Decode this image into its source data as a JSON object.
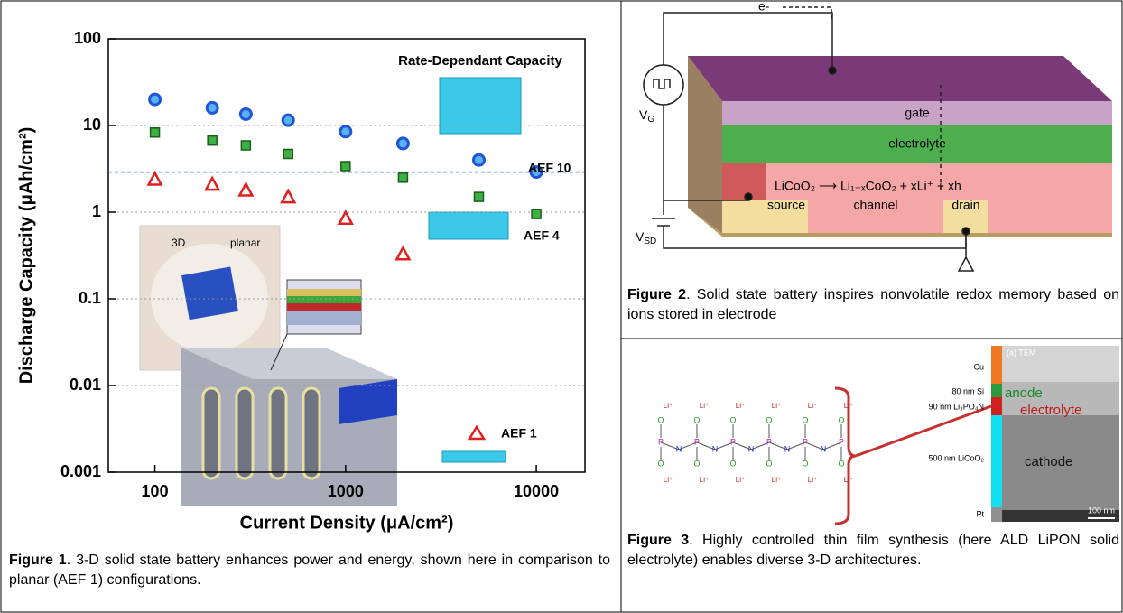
{
  "chart_data": {
    "type": "scatter",
    "title": "Rate-Dependant Capacity",
    "xlabel": "Current Density (μA/cm²)",
    "ylabel": "Discharge Capacity (μAh/cm²)",
    "log_x": true,
    "log_y": true,
    "grid": true,
    "xlim": [
      57,
      18000
    ],
    "xticks": [
      100,
      1000,
      10000
    ],
    "ylim": [
      0.001,
      100
    ],
    "yticks": [
      0.001,
      0.01,
      0.1,
      1,
      10,
      100
    ],
    "reference_line": 2.9,
    "reference_color": "#3a6fd8",
    "series": [
      {
        "name": "AEF 10",
        "marker": "circle",
        "color": "#1f55d6",
        "x": [
          100,
          200,
          300,
          500,
          1000,
          2000,
          5000,
          10000
        ],
        "values": [
          20,
          16,
          13.5,
          11.5,
          8.5,
          6.2,
          4,
          2.9
        ]
      },
      {
        "name": "AEF 4",
        "marker": "square",
        "color": "#2e9a2e",
        "x": [
          100,
          200,
          300,
          500,
          1000,
          2000,
          5000,
          10000
        ],
        "values": [
          8.3,
          6.7,
          5.9,
          4.7,
          3.4,
          2.5,
          1.5,
          0.95
        ]
      },
      {
        "name": "AEF 1",
        "marker": "triangle",
        "color": "#e02020",
        "x": [
          100,
          200,
          300,
          500,
          1000,
          2000
        ],
        "values": [
          2.4,
          2.1,
          1.8,
          1.5,
          0.85,
          0.33
        ]
      }
    ],
    "inset_labels": [
      "3D",
      "planar"
    ]
  },
  "figure1": {
    "label": "Figure 1",
    "caption": ". 3-D solid state battery enhances power and energy, shown here in comparison to planar (AEF 1) configurations."
  },
  "figure2": {
    "label": "Figure 2",
    "caption": ". Solid state battery inspires nonvolatile redox memory based on ions stored in electrode",
    "diagram": {
      "electron": "e-",
      "gate": "gate",
      "electrolyte": "electrolyte",
      "reaction": "LiCoO₂ ⟶ Li₁₋ₓCoO₂ + xLi⁺ + xh",
      "source": "source",
      "channel": "channel",
      "drain": "drain",
      "vg": {
        "main": "V",
        "sub": "G"
      },
      "vsd": {
        "main": "V",
        "sub": "SD"
      }
    }
  },
  "figure3": {
    "label": "Figure 3",
    "caption": ". Highly controlled thin film synthesis (here ALD LiPON solid electrolyte) enables diverse 3-D architectures.",
    "stack": [
      "Cu",
      "80 nm Si",
      "90 nm Li₃PO₄N",
      "500 nm LiCoO₂",
      "Pt"
    ],
    "overlay": {
      "image": "(a) TEM",
      "anode": "anode",
      "electrolyte": "electrolyte",
      "cathode": "cathode",
      "scale": "100 nm"
    },
    "molecule": {
      "backbone": [
        "P",
        "N",
        "P",
        "N",
        "P",
        "N",
        "P",
        "N",
        "P",
        "N",
        "P"
      ],
      "above": [
        "O",
        "O",
        "O",
        "O",
        "O",
        "O"
      ],
      "below": [
        "O",
        "O",
        "O",
        "O",
        "O",
        "O"
      ],
      "cations": [
        "Li⁺",
        "Li⁺",
        "Li⁺",
        "Li⁺",
        "Li⁺",
        "Li⁺",
        "Li⁺",
        "Li⁺",
        "Li⁺",
        "Li⁺",
        "Li⁺",
        "Li⁺"
      ]
    }
  }
}
